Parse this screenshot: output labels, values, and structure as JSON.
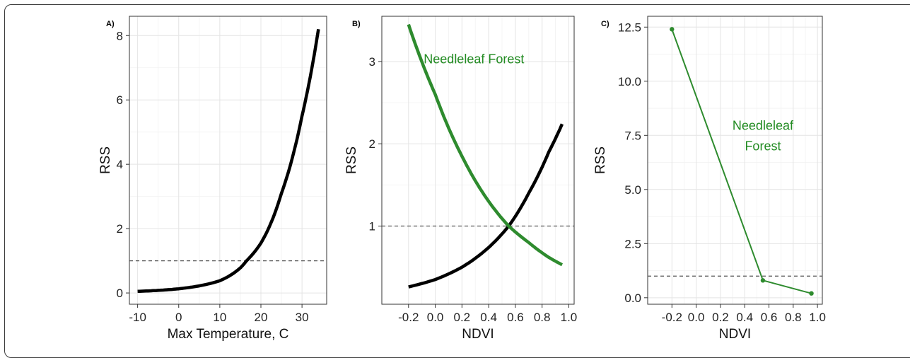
{
  "chart_data": [
    {
      "panel_label": "A)",
      "type": "line",
      "xlabel": "Max Temperature, C",
      "ylabel": "RSS",
      "xlim": [
        -12,
        36
      ],
      "ylim": [
        -0.35,
        8.6
      ],
      "xticks": [
        -10,
        0,
        10,
        20,
        30
      ],
      "xtick_labels": [
        "-10",
        "0",
        "10",
        "20",
        "30"
      ],
      "yticks": [
        0,
        2,
        4,
        6,
        8
      ],
      "ytick_labels": [
        "0",
        "2",
        "4",
        "6",
        "8"
      ],
      "grid": true,
      "reference_line": {
        "y": 1,
        "style": "dashed"
      },
      "series": [
        {
          "color": "#000000",
          "curve": "exponential",
          "x": [
            -10,
            -5,
            0,
            5,
            10,
            15,
            16.5,
            20,
            25,
            30,
            34
          ],
          "y": [
            0.05,
            0.08,
            0.13,
            0.22,
            0.38,
            0.78,
            1.0,
            1.55,
            3.1,
            5.5,
            8.2
          ]
        }
      ]
    },
    {
      "panel_label": "B)",
      "type": "line",
      "xlabel": "NDVI",
      "ylabel": "RSS",
      "xlim": [
        -0.4,
        1.04
      ],
      "ylim": [
        0.05,
        3.55
      ],
      "xticks": [
        -0.2,
        0.0,
        0.2,
        0.4,
        0.6,
        0.8,
        1.0
      ],
      "xtick_labels": [
        "-0.2",
        "0.0",
        "0.2",
        "0.4",
        "0.6",
        "0.8",
        "1.0"
      ],
      "yticks": [
        1,
        2,
        3
      ],
      "ytick_labels": [
        "1",
        "2",
        "3"
      ],
      "grid": true,
      "reference_line": {
        "y": 1,
        "style": "dashed"
      },
      "annotation": {
        "text": "Needleleaf Forest",
        "color": "#228B22",
        "x": 0.29,
        "y": 2.98
      },
      "series": [
        {
          "color": "#000000",
          "curve": "exponential",
          "x": [
            -0.2,
            0.0,
            0.2,
            0.4,
            0.55,
            0.7,
            0.85,
            0.95
          ],
          "y": [
            0.26,
            0.35,
            0.5,
            0.74,
            1.0,
            1.4,
            1.9,
            2.24
          ]
        },
        {
          "color": "#2e8b2e",
          "curve": "exponential",
          "x": [
            -0.2,
            0.0,
            0.2,
            0.4,
            0.55,
            0.7,
            0.85,
            0.95
          ],
          "y": [
            3.45,
            2.6,
            1.85,
            1.3,
            1.0,
            0.8,
            0.62,
            0.53
          ]
        }
      ]
    },
    {
      "panel_label": "C)",
      "type": "line",
      "xlabel": "NDVI",
      "ylabel": "RSS",
      "xlim": [
        -0.4,
        1.04
      ],
      "ylim": [
        -0.3,
        13.0
      ],
      "xticks": [
        -0.2,
        0.0,
        0.2,
        0.4,
        0.6,
        0.8,
        1.0
      ],
      "xtick_labels": [
        "-0.2",
        "0.0",
        "0.2",
        "0.4",
        "0.6",
        "0.8",
        "1.0"
      ],
      "yticks": [
        0,
        2.5,
        5.0,
        7.5,
        10.0,
        12.5
      ],
      "ytick_labels": [
        "0.0",
        "2.5",
        "5.0",
        "7.5",
        "10.0",
        "12.5"
      ],
      "grid": true,
      "reference_line": {
        "y": 1,
        "style": "dashed"
      },
      "annotation": {
        "lines": [
          "Needleleaf",
          "Forest"
        ],
        "color": "#228B22",
        "x": 0.55,
        "y": 7.5
      },
      "series": [
        {
          "color": "#2e8b2e",
          "curve": "linear",
          "markers": true,
          "x": [
            -0.2,
            0.55,
            0.95
          ],
          "y": [
            12.4,
            0.8,
            0.2
          ]
        }
      ]
    }
  ]
}
